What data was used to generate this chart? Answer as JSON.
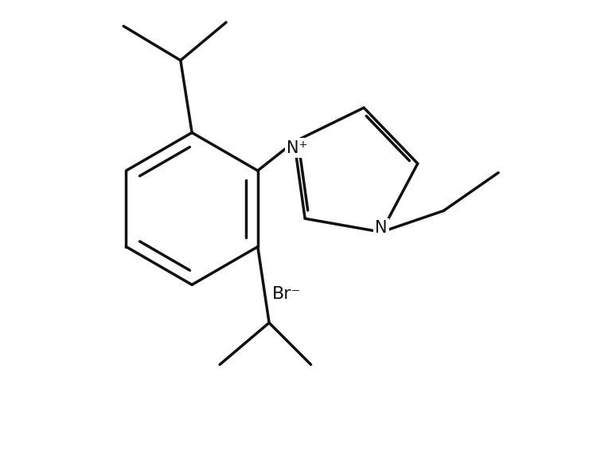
{
  "bg_color": "#ffffff",
  "line_color": "#111111",
  "line_width": 2.5,
  "fig_width": 7.4,
  "fig_height": 5.81,
  "label_Nplus": "N⁺",
  "label_N": "N",
  "label_Br": "Br⁻",
  "font_size": 15
}
